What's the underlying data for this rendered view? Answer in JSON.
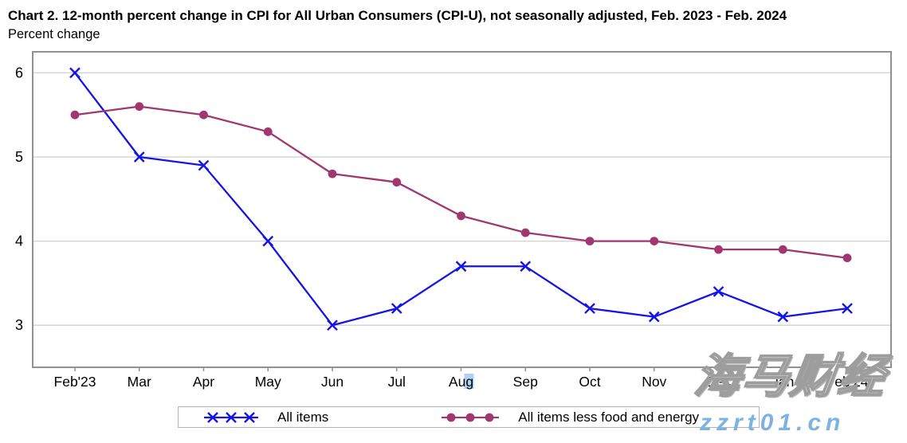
{
  "header": {
    "title": "Chart 2. 12-month percent change in CPI for All Urban Consumers (CPI-U), not seasonally adjusted, Feb. 2023 - Feb. 2024",
    "subtitle": "Percent change"
  },
  "chart_data": {
    "type": "line",
    "title": "Chart 2. 12-month percent change in CPI for All Urban Consumers (CPI-U), not seasonally adjusted, Feb. 2023 - Feb. 2024",
    "ylabel": "Percent change",
    "xlabel": "",
    "categories": [
      "Feb'23",
      "Mar",
      "Apr",
      "May",
      "Jun",
      "Jul",
      "Aug",
      "Sep",
      "Oct",
      "Nov",
      "Dec",
      "Jan",
      "Feb'24"
    ],
    "series": [
      {
        "name": "All items",
        "color": "#1414e8",
        "marker": "x",
        "values": [
          6.0,
          5.0,
          4.9,
          4.0,
          3.0,
          3.2,
          3.7,
          3.7,
          3.2,
          3.1,
          3.4,
          3.1,
          3.2
        ]
      },
      {
        "name": "All items less food and energy",
        "color": "#a13670",
        "marker": "circle",
        "values": [
          5.5,
          5.6,
          5.5,
          5.3,
          4.8,
          4.7,
          4.3,
          4.1,
          4.0,
          4.0,
          3.9,
          3.9,
          3.8
        ]
      }
    ],
    "ylim": [
      2.5,
      6.25
    ],
    "yticks": [
      3,
      4,
      5,
      6
    ],
    "grid": "horizontal",
    "legend_position": "bottom"
  },
  "watermark": {
    "primary": "海马财经",
    "secondary": "zzrt01.cn",
    "secondary_color": "#7eb2e0"
  }
}
